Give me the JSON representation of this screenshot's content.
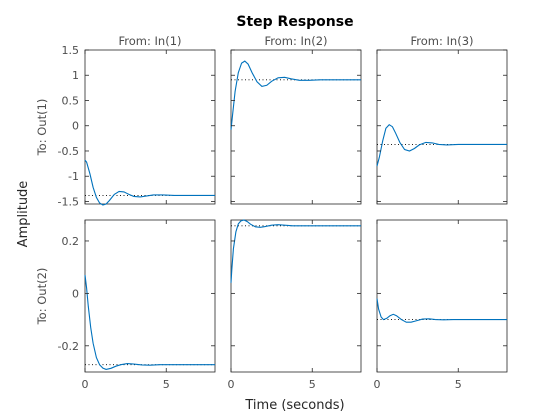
{
  "chart_data": {
    "type": "line",
    "title": "Step Response",
    "xlabel": "Time (seconds)",
    "ylabel": "Amplitude",
    "inputs": [
      "From: In(1)",
      "From: In(2)",
      "From: In(3)"
    ],
    "outputs": [
      "To: Out(1)",
      "To: Out(2)"
    ],
    "xlim": [
      0,
      8
    ],
    "xticks": [
      "0",
      "5"
    ],
    "row_ylims": [
      [
        -1.55,
        1.5
      ],
      [
        -0.3,
        0.28
      ]
    ],
    "row_yticks": [
      [
        "1.5",
        "1",
        "0.5",
        "0",
        "-0.5",
        "-1",
        "-1.5"
      ],
      [
        "0.2",
        "0",
        "-0.2"
      ]
    ],
    "series_color": "#0072bd",
    "steady_state_style": "dotted",
    "grid": false,
    "panels": [
      {
        "row": 0,
        "col": 0,
        "final": -1.38,
        "x": [
          0,
          0.1,
          0.3,
          0.5,
          0.7,
          0.9,
          1.1,
          1.3,
          1.5,
          1.8,
          2.1,
          2.4,
          2.7,
          3.0,
          3.4,
          3.8,
          4.2,
          4.8,
          5.5,
          6.5,
          8
        ],
        "y": [
          -0.68,
          -0.72,
          -0.95,
          -1.22,
          -1.42,
          -1.53,
          -1.57,
          -1.55,
          -1.48,
          -1.36,
          -1.3,
          -1.31,
          -1.36,
          -1.4,
          -1.41,
          -1.39,
          -1.37,
          -1.37,
          -1.38,
          -1.38,
          -1.38
        ]
      },
      {
        "row": 0,
        "col": 1,
        "final": 0.91,
        "x": [
          0,
          0.1,
          0.25,
          0.45,
          0.65,
          0.85,
          1.05,
          1.3,
          1.6,
          1.9,
          2.2,
          2.5,
          2.9,
          3.3,
          3.7,
          4.2,
          4.8,
          5.5,
          6.5,
          8
        ],
        "y": [
          -0.08,
          0.22,
          0.68,
          1.05,
          1.24,
          1.28,
          1.22,
          1.05,
          0.87,
          0.78,
          0.8,
          0.88,
          0.95,
          0.96,
          0.93,
          0.9,
          0.9,
          0.91,
          0.91,
          0.91
        ],
        "y_rate_equals": 0
      },
      {
        "row": 0,
        "col": 2,
        "final": -0.37,
        "x": [
          0,
          0.15,
          0.35,
          0.55,
          0.75,
          0.95,
          1.15,
          1.4,
          1.7,
          2.0,
          2.3,
          2.6,
          3.0,
          3.4,
          3.8,
          4.3,
          5.0,
          6.0,
          8
        ],
        "y": [
          -0.8,
          -0.62,
          -0.3,
          -0.05,
          0.02,
          -0.02,
          -0.15,
          -0.33,
          -0.47,
          -0.5,
          -0.45,
          -0.38,
          -0.33,
          -0.34,
          -0.37,
          -0.38,
          -0.37,
          -0.37,
          -0.37
        ]
      },
      {
        "row": 1,
        "col": 0,
        "final": -0.272,
        "x": [
          0,
          0.1,
          0.2,
          0.35,
          0.5,
          0.7,
          0.9,
          1.1,
          1.3,
          1.6,
          1.9,
          2.2,
          2.6,
          3.0,
          3.5,
          4.0,
          4.6,
          5.3,
          6.3,
          8
        ],
        "y": [
          0.07,
          0.02,
          -0.05,
          -0.13,
          -0.19,
          -0.245,
          -0.272,
          -0.285,
          -0.29,
          -0.286,
          -0.278,
          -0.272,
          -0.268,
          -0.27,
          -0.273,
          -0.274,
          -0.272,
          -0.272,
          -0.272,
          -0.272
        ]
      },
      {
        "row": 1,
        "col": 1,
        "final": 0.258,
        "x": [
          0,
          0.05,
          0.15,
          0.3,
          0.45,
          0.6,
          0.8,
          1.0,
          1.2,
          1.5,
          1.8,
          2.1,
          2.5,
          2.9,
          3.3,
          3.8,
          4.3,
          5.0,
          6.0,
          8
        ],
        "y": [
          0.04,
          0.09,
          0.17,
          0.235,
          0.265,
          0.276,
          0.28,
          0.274,
          0.264,
          0.254,
          0.252,
          0.255,
          0.26,
          0.262,
          0.26,
          0.258,
          0.258,
          0.258,
          0.258,
          0.258
        ]
      },
      {
        "row": 1,
        "col": 2,
        "final": -0.1,
        "x": [
          0,
          0.1,
          0.25,
          0.4,
          0.6,
          0.8,
          1.0,
          1.2,
          1.5,
          1.8,
          2.1,
          2.4,
          2.8,
          3.2,
          3.6,
          4.1,
          4.7,
          5.5,
          6.5,
          8
        ],
        "y": [
          -0.02,
          -0.06,
          -0.09,
          -0.1,
          -0.095,
          -0.085,
          -0.08,
          -0.085,
          -0.1,
          -0.11,
          -0.11,
          -0.105,
          -0.098,
          -0.097,
          -0.1,
          -0.101,
          -0.1,
          -0.1,
          -0.1,
          -0.1
        ]
      }
    ]
  }
}
